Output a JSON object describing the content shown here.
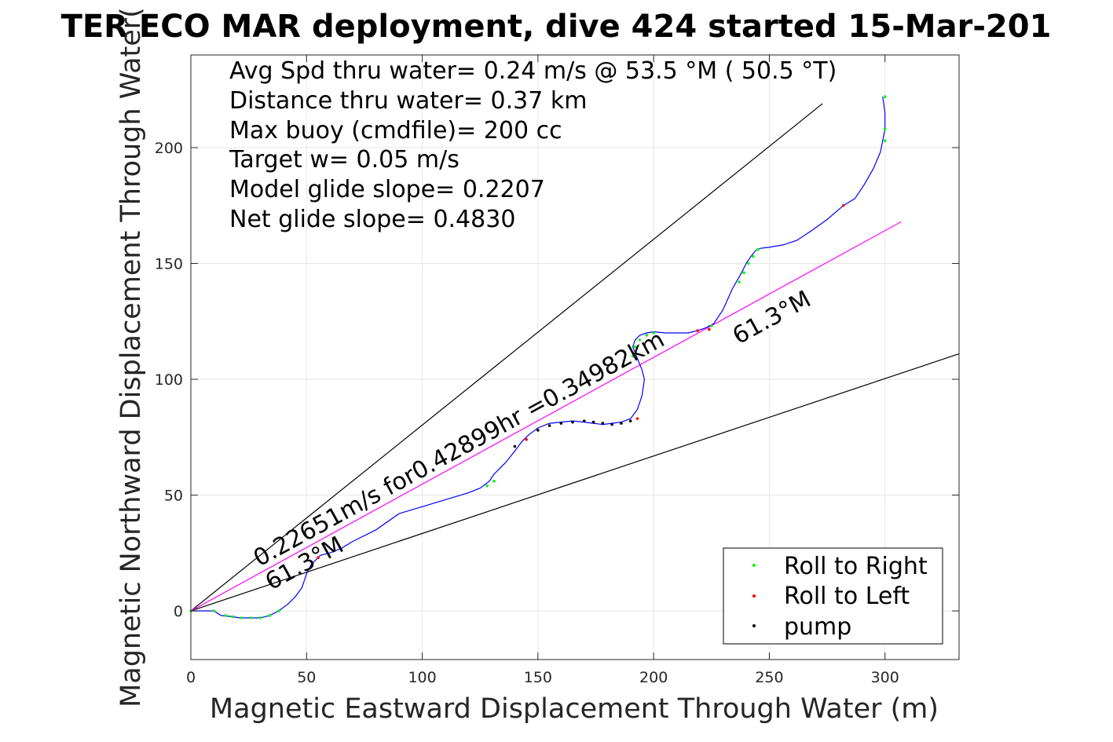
{
  "chart_data": {
    "type": "scatter",
    "title": "TER ECO MAR deployment, dive 424 started 15-Mar-201",
    "xlabel": "Magnetic Eastward Displacement Through Water (m)",
    "ylabel": "Magnetic Northward Displacement Through Water(",
    "xlim": [
      0,
      332
    ],
    "ylim": [
      -21,
      240
    ],
    "x_ticks": [
      "0",
      "50",
      "100",
      "150",
      "200",
      "250",
      "300"
    ],
    "y_ticks": [
      "0",
      "50",
      "100",
      "150",
      "200"
    ],
    "grid": true,
    "legend_position": "bottom-right",
    "annotations": [
      "Avg Spd thru water=  0.24 m/s @  53.5 °M ( 50.5 °T)",
      "Distance thru water=  0.37 km",
      "Max buoy (cmdfile)= 200 cc",
      "Target w= 0.05 m/s",
      "Model glide slope= 0.2207",
      "Net glide slope= 0.4830"
    ],
    "line_labels": {
      "speed": "0.22651m/s for0.42899hr =0.34982km",
      "heading_low": "61.3°M",
      "heading_high": "61.3°M"
    },
    "reference_lines": [
      {
        "kind": "envelope",
        "x": [
          0,
          273
        ],
        "y": [
          0,
          219
        ]
      },
      {
        "kind": "envelope",
        "x": [
          0,
          335
        ],
        "y": [
          0,
          112
        ]
      },
      {
        "kind": "heading",
        "x": [
          0,
          307
        ],
        "y": [
          0,
          168
        ]
      }
    ],
    "track": {
      "x": [
        0,
        10,
        13,
        18,
        21,
        26,
        30,
        34,
        38,
        42,
        45,
        48,
        50,
        52,
        56,
        60,
        65,
        70,
        80,
        90,
        100,
        110,
        120,
        125,
        129,
        131,
        136,
        140,
        143,
        146,
        150,
        155,
        160,
        165,
        170,
        174,
        178,
        182,
        186,
        190,
        193,
        195,
        196,
        195,
        193,
        191,
        192,
        194,
        197,
        200,
        205,
        215,
        219,
        222,
        226,
        230,
        234,
        238,
        240,
        242,
        244,
        246,
        250,
        256,
        262,
        268,
        275,
        282,
        287,
        291,
        295,
        298,
        299,
        300,
        300,
        299
      ],
      "y": [
        0,
        0,
        -2,
        -2.5,
        -3,
        -3,
        -3,
        -2,
        0,
        3,
        6,
        10,
        16,
        20,
        24,
        25,
        27,
        30,
        35,
        42,
        45,
        48,
        51,
        53,
        56,
        59,
        64,
        69,
        73,
        76,
        79,
        81,
        81.5,
        82,
        81.5,
        81,
        80.5,
        81,
        81.5,
        83,
        87,
        93,
        100,
        104,
        109,
        114,
        117,
        119,
        120,
        120.5,
        120,
        120,
        121,
        122,
        124,
        130,
        139,
        146,
        150,
        153,
        155.5,
        156.5,
        157,
        158,
        160,
        164,
        169,
        175,
        178,
        184,
        191,
        198,
        203,
        208,
        215,
        222
      ]
    },
    "series": [
      {
        "name": "Roll to Right",
        "color": "#00ff00",
        "x": [
          0,
          10,
          15,
          18,
          22,
          26,
          30,
          34,
          38,
          128,
          131,
          191,
          192,
          194,
          197,
          200,
          225,
          237,
          239,
          241,
          243,
          245,
          300,
          300,
          300
        ],
        "y": [
          0,
          0,
          -2,
          -2.5,
          -3,
          -3,
          -3,
          -2,
          0,
          54,
          56,
          110,
          114,
          117,
          119,
          120,
          123,
          142,
          146,
          150,
          153,
          156,
          203,
          208,
          222
        ]
      },
      {
        "name": "Roll to Left",
        "color": "#ff0000",
        "x": [
          55,
          145,
          193,
          219,
          224,
          282
        ],
        "y": [
          23,
          74,
          83,
          121,
          121.5,
          175
        ]
      },
      {
        "name": "pump",
        "color": "#000000",
        "x": [
          140,
          150,
          155,
          160,
          165,
          170,
          174,
          178,
          182,
          186,
          190
        ],
        "y": [
          71,
          78,
          80,
          81,
          81.5,
          82,
          81.5,
          81,
          80.5,
          81,
          82
        ]
      }
    ],
    "colors": {
      "track": "#0000ff",
      "heading_line": "#ff00ff",
      "envelope": "#000000",
      "grid": "#e6e6e6"
    }
  }
}
